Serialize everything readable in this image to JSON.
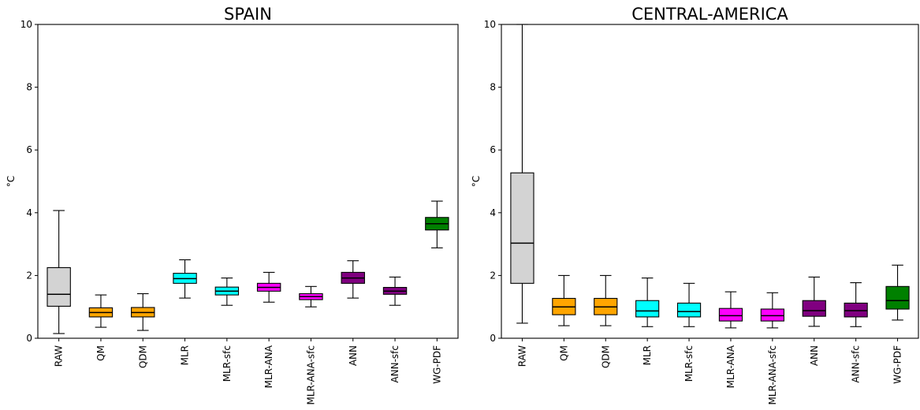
{
  "chart_data": [
    {
      "type": "box",
      "title": "SPAIN",
      "ylabel": "°C",
      "ylim": [
        0,
        10
      ],
      "yticks": [
        0,
        2,
        4,
        6,
        8,
        10
      ],
      "grid": false,
      "categories": [
        "RAW",
        "QM",
        "QDM",
        "MLR",
        "MLR-sfc",
        "MLR-ANA",
        "MLR-ANA-sfc",
        "ANN",
        "ANN-sfc",
        "WG-PDF"
      ],
      "colors": [
        "#d3d3d3",
        "#ffa500",
        "#ffa500",
        "#00ffff",
        "#00ffff",
        "#ff00ff",
        "#ff00ff",
        "#800080",
        "#800080",
        "#008000"
      ],
      "boxes": [
        {
          "min": 0.15,
          "q1": 1.02,
          "median": 1.4,
          "q3": 2.25,
          "max": 4.07
        },
        {
          "min": 0.35,
          "q1": 0.68,
          "median": 0.82,
          "q3": 0.97,
          "max": 1.38
        },
        {
          "min": 0.25,
          "q1": 0.68,
          "median": 0.82,
          "q3": 0.98,
          "max": 1.42
        },
        {
          "min": 1.28,
          "q1": 1.75,
          "median": 1.9,
          "q3": 2.07,
          "max": 2.5
        },
        {
          "min": 1.05,
          "q1": 1.38,
          "median": 1.5,
          "q3": 1.63,
          "max": 1.92
        },
        {
          "min": 1.15,
          "q1": 1.5,
          "median": 1.62,
          "q3": 1.75,
          "max": 2.1
        },
        {
          "min": 1.0,
          "q1": 1.23,
          "median": 1.33,
          "q3": 1.42,
          "max": 1.65
        },
        {
          "min": 1.28,
          "q1": 1.75,
          "median": 1.92,
          "q3": 2.1,
          "max": 2.47
        },
        {
          "min": 1.05,
          "q1": 1.4,
          "median": 1.5,
          "q3": 1.62,
          "max": 1.95
        },
        {
          "min": 2.88,
          "q1": 3.45,
          "median": 3.65,
          "q3": 3.85,
          "max": 4.37
        }
      ]
    },
    {
      "type": "box",
      "title": "CENTRAL-AMERICA",
      "ylabel": "°C",
      "ylim": [
        0,
        10
      ],
      "yticks": [
        0,
        2,
        4,
        6,
        8,
        10
      ],
      "grid": false,
      "categories": [
        "RAW",
        "QM",
        "QDM",
        "MLR",
        "MLR-sfc",
        "MLR-ANA",
        "MLR-ANA-sfc",
        "ANN",
        "ANN-sfc",
        "WG-PDF"
      ],
      "colors": [
        "#d3d3d3",
        "#ffa500",
        "#ffa500",
        "#00ffff",
        "#00ffff",
        "#ff00ff",
        "#ff00ff",
        "#800080",
        "#800080",
        "#008000"
      ],
      "boxes": [
        {
          "min": 0.48,
          "q1": 1.75,
          "median": 3.03,
          "q3": 5.27,
          "max": 10.0
        },
        {
          "min": 0.4,
          "q1": 0.75,
          "median": 1.0,
          "q3": 1.27,
          "max": 2.0
        },
        {
          "min": 0.4,
          "q1": 0.75,
          "median": 1.0,
          "q3": 1.27,
          "max": 2.0
        },
        {
          "min": 0.37,
          "q1": 0.68,
          "median": 0.87,
          "q3": 1.2,
          "max": 1.92
        },
        {
          "min": 0.37,
          "q1": 0.68,
          "median": 0.85,
          "q3": 1.12,
          "max": 1.75
        },
        {
          "min": 0.33,
          "q1": 0.55,
          "median": 0.72,
          "q3": 0.95,
          "max": 1.48
        },
        {
          "min": 0.33,
          "q1": 0.55,
          "median": 0.72,
          "q3": 0.93,
          "max": 1.45
        },
        {
          "min": 0.38,
          "q1": 0.7,
          "median": 0.88,
          "q3": 1.2,
          "max": 1.95
        },
        {
          "min": 0.37,
          "q1": 0.68,
          "median": 0.88,
          "q3": 1.12,
          "max": 1.77
        },
        {
          "min": 0.58,
          "q1": 0.93,
          "median": 1.2,
          "q3": 1.65,
          "max": 2.33
        }
      ]
    }
  ]
}
